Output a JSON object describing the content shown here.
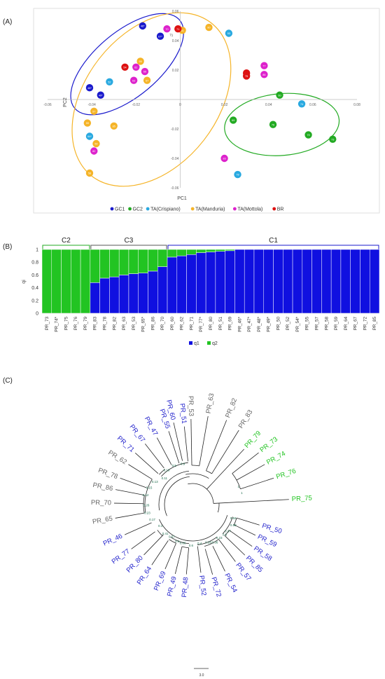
{
  "panels": {
    "a": "(A)",
    "b": "(B)",
    "c": "(C)"
  },
  "chart_data": [
    {
      "type": "scatter",
      "panel": "(A)",
      "xlabel": "PC1",
      "ylabel": "PC2",
      "xlim": [
        -0.06,
        0.08
      ],
      "ylim": [
        -0.06,
        0.06
      ],
      "xticks": [
        -0.06,
        -0.04,
        -0.02,
        0,
        0.02,
        0.04,
        0.06,
        0.08
      ],
      "yticks": [
        -0.06,
        -0.04,
        -0.02,
        0,
        0.02,
        0.04,
        0.06
      ],
      "xtick_labels": [
        "-0.06",
        "-0.04",
        "-0.02",
        "0",
        "0.02",
        "0.04",
        "0.06",
        "0.08"
      ],
      "ytick_labels": [
        "-0.06",
        "-0.04",
        "-0.02",
        "0",
        "0.02",
        "0.04",
        "0.06"
      ],
      "grid": false,
      "legend_placement": "bottom",
      "series": [
        {
          "name": "GC1",
          "color": "#1a1acc",
          "points": [
            {
              "x": -0.017,
              "y": 0.05,
              "label": "46*"
            },
            {
              "x": -0.009,
              "y": 0.043,
              "label": "67*"
            },
            {
              "x": -0.041,
              "y": 0.008,
              "label": "48*"
            },
            {
              "x": -0.036,
              "y": 0.003,
              "label": "49*"
            }
          ]
        },
        {
          "name": "GC2",
          "color": "#22aa22",
          "points": [
            {
              "x": 0.045,
              "y": 0.003,
              "label": "60"
            },
            {
              "x": 0.024,
              "y": -0.014,
              "label": "69"
            },
            {
              "x": 0.042,
              "y": -0.017,
              "label": "76"
            },
            {
              "x": 0.058,
              "y": -0.024,
              "label": "79"
            },
            {
              "x": 0.069,
              "y": -0.027,
              "label": "73"
            }
          ]
        },
        {
          "name": "TA(Crispiano)",
          "color": "#29a9e0",
          "points": [
            {
              "x": 0.022,
              "y": 0.045,
              "label": "53"
            },
            {
              "x": -0.032,
              "y": 0.012,
              "label": "52"
            },
            {
              "x": 0.055,
              "y": -0.003,
              "label": "74"
            },
            {
              "x": -0.041,
              "y": -0.025,
              "label": "64*"
            },
            {
              "x": 0.026,
              "y": -0.051,
              "label": "78"
            }
          ]
        },
        {
          "name": "TA(Manduria)",
          "color": "#f5b428",
          "points": [
            {
              "x": 0.013,
              "y": 0.049,
              "label": "80"
            },
            {
              "x": 0.001,
              "y": 0.047,
              "label": "51"
            },
            {
              "x": -0.018,
              "y": 0.026,
              "label": "55"
            },
            {
              "x": -0.015,
              "y": 0.013,
              "label": "67"
            },
            {
              "x": -0.039,
              "y": -0.008,
              "label": "57"
            },
            {
              "x": -0.042,
              "y": -0.016,
              "label": "59"
            },
            {
              "x": -0.03,
              "y": -0.018,
              "label": "85"
            },
            {
              "x": -0.038,
              "y": -0.03,
              "label": "50"
            },
            {
              "x": -0.041,
              "y": -0.05,
              "label": "58"
            }
          ]
        },
        {
          "name": "TA(Mottola)",
          "color": "#dd22cc",
          "points": [
            {
              "x": -0.006,
              "y": 0.048,
              "label": "70"
            },
            {
              "x": -0.02,
              "y": 0.022,
              "label": "62"
            },
            {
              "x": -0.016,
              "y": 0.019,
              "label": "65"
            },
            {
              "x": -0.021,
              "y": 0.013,
              "label": "63"
            },
            {
              "x": 0.038,
              "y": 0.023,
              "label": "77"
            },
            {
              "x": 0.038,
              "y": 0.017,
              "label": "86"
            },
            {
              "x": -0.039,
              "y": -0.035,
              "label": "82"
            },
            {
              "x": 0.02,
              "y": -0.04,
              "label": "83"
            }
          ]
        },
        {
          "name": "BR",
          "color": "#dd1111",
          "points": [
            {
              "x": -0.001,
              "y": 0.048,
              "label": "71"
            },
            {
              "x": -0.025,
              "y": 0.022,
              "label": "54"
            },
            {
              "x": 0.03,
              "y": 0.018,
              "label": "72"
            },
            {
              "x": 0.03,
              "y": 0.016,
              "label": "75"
            }
          ]
        }
      ],
      "group_ellipses": [
        {
          "color": "#1a1acc",
          "cx": -0.024,
          "cy": 0.024,
          "rx": 0.031,
          "ry": 0.022,
          "rotate": -40
        },
        {
          "color": "#f5b428",
          "cx": -0.013,
          "cy": 0.0,
          "rx": 0.03,
          "ry": 0.066,
          "rotate": 38
        },
        {
          "color": "#22aa22",
          "cx": 0.046,
          "cy": -0.017,
          "rx": 0.026,
          "ry": 0.021,
          "rotate": -5
        }
      ],
      "annotation": "71"
    },
    {
      "type": "bar",
      "stacked": true,
      "panel": "(B)",
      "ylabel": "qi",
      "ylim": [
        0,
        1
      ],
      "yticks": [
        0,
        0.2,
        0.4,
        0.6,
        0.8,
        1
      ],
      "ytick_labels": [
        "0",
        "0.2",
        "0.4",
        "0.6",
        "0.8",
        "1"
      ],
      "legend_placement": "bottom",
      "categories": [
        "PR_73",
        "PR_74*",
        "PR_75",
        "PR_76",
        "PR_79",
        "PR_83",
        "PR_78",
        "PR_82",
        "PR_63",
        "PR_53",
        "PR_65*",
        "PR_86",
        "PR_70",
        "PR_60",
        "PR_62",
        "PR_71",
        "PR_77*",
        "PR_80",
        "PR_51",
        "PR_69",
        "PR_46*",
        "PR_47*",
        "PR_48*",
        "PR_49*",
        "PR_50",
        "PR_52",
        "PR_54*",
        "PR_55",
        "PR_57",
        "PR_58",
        "PR_59",
        "PR_64",
        "PR_67",
        "PR_72",
        "PR_85"
      ],
      "series": [
        {
          "name": "q1",
          "color": "#1010e0",
          "values": [
            0,
            0,
            0,
            0,
            0,
            0.48,
            0.55,
            0.57,
            0.6,
            0.62,
            0.63,
            0.66,
            0.73,
            0.88,
            0.9,
            0.92,
            0.95,
            0.96,
            0.97,
            0.98,
            1,
            1,
            1,
            1,
            1,
            1,
            1,
            1,
            1,
            1,
            1,
            1,
            1,
            1,
            1
          ]
        },
        {
          "name": "q2",
          "color": "#22c422",
          "values": [
            1,
            1,
            1,
            1,
            1,
            0.52,
            0.45,
            0.43,
            0.4,
            0.38,
            0.37,
            0.34,
            0.27,
            0.12,
            0.1,
            0.08,
            0.05,
            0.04,
            0.03,
            0.02,
            0,
            0,
            0,
            0,
            0,
            0,
            0,
            0,
            0,
            0,
            0,
            0,
            0,
            0,
            0
          ]
        }
      ],
      "clusters": [
        {
          "label": "C2",
          "color": "#22aa22",
          "from": 0,
          "to": 4
        },
        {
          "label": "C3",
          "color": "#555555",
          "from": 5,
          "to": 12
        },
        {
          "label": "C1",
          "color": "#1a1acc",
          "from": 13,
          "to": 34
        }
      ]
    },
    {
      "type": "dendrogram",
      "panel": "(C)",
      "scale_label": "3.0",
      "leaves": [
        {
          "label": "PR_60",
          "color": "#2222cc"
        },
        {
          "label": "PR_53",
          "color": "#666666"
        },
        {
          "label": "PR_63",
          "color": "#666666"
        },
        {
          "label": "PR_82",
          "color": "#666666"
        },
        {
          "label": "PR_83",
          "color": "#666666"
        },
        {
          "label": "PR_79",
          "color": "#22c422"
        },
        {
          "label": "PR_73",
          "color": "#22c422"
        },
        {
          "label": "PR_74",
          "color": "#22c422"
        },
        {
          "label": "PR_76",
          "color": "#22c422"
        },
        {
          "label": "PR_75",
          "color": "#22c422"
        },
        {
          "label": "PR_50",
          "color": "#2222cc"
        },
        {
          "label": "PR_59",
          "color": "#2222cc"
        },
        {
          "label": "PR_58",
          "color": "#2222cc"
        },
        {
          "label": "PR_85",
          "color": "#2222cc"
        },
        {
          "label": "PR_57",
          "color": "#2222cc"
        },
        {
          "label": "PR_54",
          "color": "#2222cc"
        },
        {
          "label": "PR_72",
          "color": "#2222cc"
        },
        {
          "label": "PR_52",
          "color": "#2222cc"
        },
        {
          "label": "PR_48",
          "color": "#2222cc"
        },
        {
          "label": "PR_49",
          "color": "#2222cc"
        },
        {
          "label": "PR_69",
          "color": "#2222cc"
        },
        {
          "label": "PR_64",
          "color": "#2222cc"
        },
        {
          "label": "PR_80",
          "color": "#2222cc"
        },
        {
          "label": "PR_77",
          "color": "#2222cc"
        },
        {
          "label": "PR_46",
          "color": "#2222cc"
        },
        {
          "label": "PR_65",
          "color": "#666666"
        },
        {
          "label": "PR_70",
          "color": "#666666"
        },
        {
          "label": "PR_86",
          "color": "#666666"
        },
        {
          "label": "PR_78",
          "color": "#666666"
        },
        {
          "label": "PR_62",
          "color": "#666666"
        },
        {
          "label": "PR_71",
          "color": "#2222cc"
        },
        {
          "label": "PR_67",
          "color": "#2222cc"
        },
        {
          "label": "PR_47",
          "color": "#2222cc"
        },
        {
          "label": "PR_55",
          "color": "#2222cc"
        },
        {
          "label": "PR_51",
          "color": "#2222cc"
        }
      ],
      "support_values": [
        "0.84",
        "0.58",
        "0.37",
        "0.6",
        "0.23",
        "0.36",
        "0.28",
        "0.4",
        "0.6",
        "0.66",
        "0.6",
        "0.57",
        "0.41",
        "0.1",
        "0.17",
        "0.23",
        "0.26",
        "0.12",
        "0.15",
        "0.13",
        "0.11",
        "0.18",
        "0.5",
        "0.9",
        "1",
        "1"
      ]
    }
  ]
}
